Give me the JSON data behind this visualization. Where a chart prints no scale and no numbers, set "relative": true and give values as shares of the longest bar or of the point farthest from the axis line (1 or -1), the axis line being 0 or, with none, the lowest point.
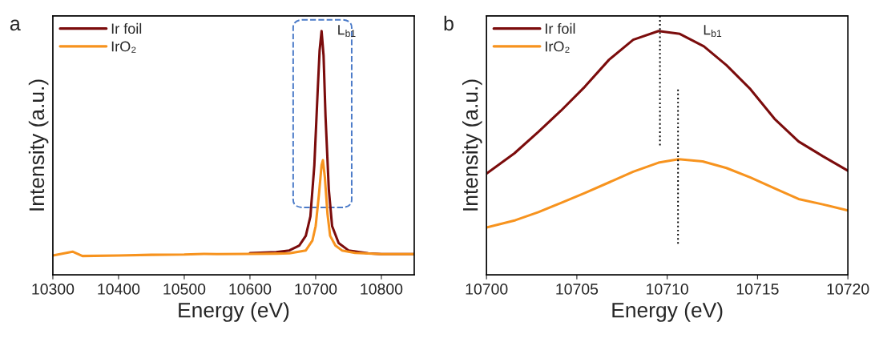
{
  "chart_data": [
    {
      "type": "line",
      "title": "a",
      "xlabel": "Energy (eV)",
      "ylabel": "Intensity (a.u.)",
      "relative": true,
      "legend": "top left",
      "tick_labels": "x",
      "xlim": [
        10300,
        10850
      ],
      "xticks": [
        10300,
        10400,
        10500,
        10600,
        10700,
        10800
      ],
      "annotations": [
        "L$_{b1}$"
      ],
      "series": [
        {
          "name": "Ir foil",
          "color": "#7b0c0c",
          "x": [
            10600,
            10640,
            10660,
            10675,
            10685,
            10692,
            10698,
            10703,
            10706,
            10709,
            10712,
            10715,
            10720,
            10725,
            10735,
            10750,
            10780,
            10800,
            10850
          ],
          "values": [
            0.089,
            0.093,
            0.1,
            0.12,
            0.16,
            0.24,
            0.45,
            0.75,
            0.92,
            1.0,
            0.9,
            0.65,
            0.35,
            0.2,
            0.13,
            0.1,
            0.088,
            0.085,
            0.085
          ]
        },
        {
          "name": "IrO₂",
          "color": "#f7931e",
          "x": [
            10300,
            10330,
            10345,
            10400,
            10450,
            10500,
            10530,
            10550,
            10600,
            10640,
            10660,
            10685,
            10695,
            10700,
            10705,
            10709,
            10711,
            10714,
            10718,
            10722,
            10730,
            10740,
            10760,
            10800,
            10850
          ],
          "values": [
            0.079,
            0.095,
            0.077,
            0.079,
            0.082,
            0.083,
            0.086,
            0.085,
            0.086,
            0.087,
            0.088,
            0.1,
            0.14,
            0.2,
            0.33,
            0.45,
            0.47,
            0.4,
            0.25,
            0.16,
            0.12,
            0.1,
            0.09,
            0.085,
            0.085
          ]
        }
      ]
    },
    {
      "type": "line",
      "title": "b",
      "xlabel": "Energy (eV)",
      "ylabel": "Intensity (a.u.)",
      "relative": true,
      "legend": "top left",
      "tick_labels": "x",
      "xlim": [
        10700,
        10720
      ],
      "xticks": [
        10700,
        10705,
        10710,
        10715,
        10720
      ],
      "annotations": [
        "L$_{b1}$"
      ],
      "ref_lines": [
        {
          "axis": "x",
          "value": 10709.6,
          "line_style": "dotted",
          "color": "#000000"
        },
        {
          "axis": "x",
          "value": 10710.6,
          "line_style": "dotted",
          "color": "#000000"
        }
      ],
      "series": [
        {
          "name": "Ir foil",
          "color": "#7b0c0c",
          "x": [
            10700,
            10701.54,
            10702.87,
            10704.12,
            10705.45,
            10706.78,
            10708.12,
            10709.52,
            10710.7,
            10712.03,
            10713.28,
            10714.61,
            10715.94,
            10717.27,
            10718.6,
            10720
          ],
          "values": [
            0.415,
            0.498,
            0.586,
            0.673,
            0.772,
            0.882,
            0.964,
            1.0,
            0.988,
            0.937,
            0.86,
            0.761,
            0.64,
            0.547,
            0.487,
            0.427
          ]
        },
        {
          "name": "IrO₂",
          "color": "#f7931e",
          "x": [
            10700,
            10701.6,
            10702.87,
            10704.12,
            10705.45,
            10706.78,
            10708.12,
            10709.52,
            10710.63,
            10711.96,
            10713.28,
            10714.61,
            10715.94,
            10717.27,
            10718.6,
            10720
          ],
          "values": [
            0.194,
            0.224,
            0.257,
            0.295,
            0.336,
            0.379,
            0.423,
            0.46,
            0.474,
            0.465,
            0.438,
            0.399,
            0.355,
            0.311,
            0.289,
            0.264
          ]
        }
      ]
    }
  ]
}
